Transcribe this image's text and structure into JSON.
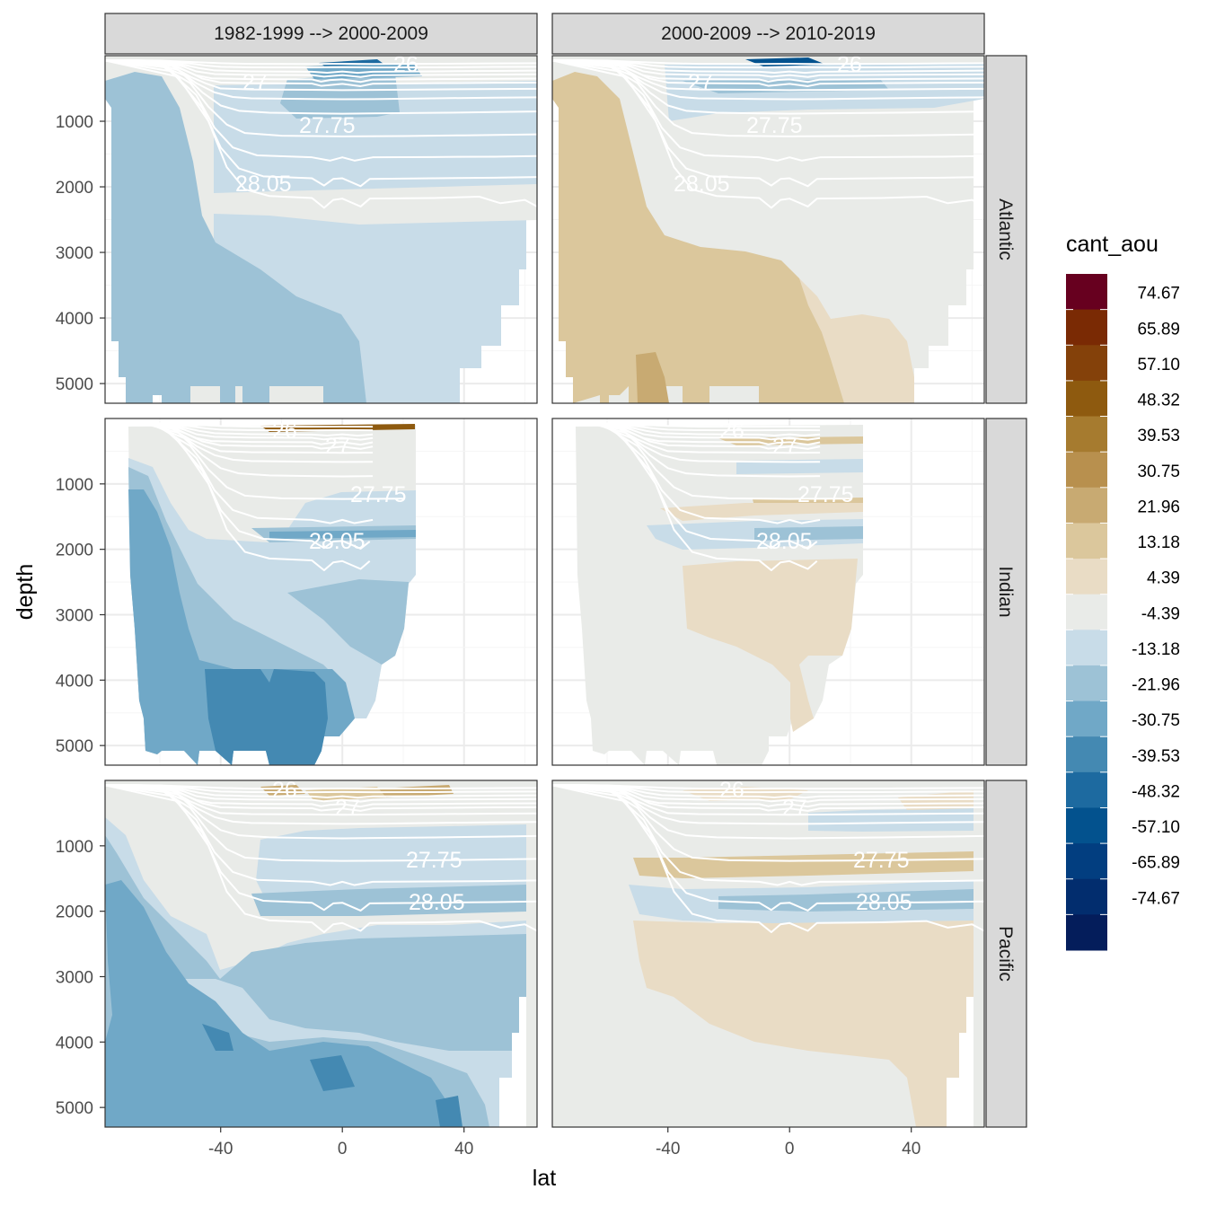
{
  "chart_data": {
    "type": "heatmap",
    "subtype": "faceted filled-contour depth-latitude sections",
    "xlabel": "lat",
    "ylabel": "depth",
    "x_ticks": [
      -40,
      0,
      40
    ],
    "y_ticks": [
      1000,
      2000,
      3000,
      4000,
      5000
    ],
    "xlim": [
      -78,
      64
    ],
    "ylim_reversed": [
      5300,
      0
    ],
    "column_facets": [
      "1982-1999 --> 2000-2009",
      "2000-2009 --> 2010-2019"
    ],
    "row_facets": [
      "Atlantic",
      "Indian",
      "Pacific"
    ],
    "isopycnal_labels": [
      "26",
      "27",
      "27.75",
      "28.05"
    ],
    "legend": {
      "title": "cant_aou",
      "labels": [
        "74.67",
        "65.89",
        "57.10",
        "48.32",
        "39.53",
        "30.75",
        "21.96",
        "13.18",
        "4.39",
        "-4.39",
        "-13.18",
        "-21.96",
        "-30.75",
        "-39.53",
        "-48.32",
        "-57.10",
        "-65.89",
        "-74.67"
      ],
      "colors": [
        "#67001f",
        "#7a2a04",
        "#84410a",
        "#8e5a0f",
        "#a67b2f",
        "#b8904e",
        "#c8aa72",
        "#dbc79c",
        "#e9dcc5",
        "#e9ebe8",
        "#c8dce8",
        "#9dc2d6",
        "#70a8c7",
        "#4489b2",
        "#1d6aa0",
        "#03528e",
        "#023e80",
        "#022d6e",
        "#041d5b"
      ]
    },
    "colors": {
      "panel_border": "#333333",
      "strip_fill": "#d9d9d9",
      "grid_major": "#ebebeb",
      "grid_minor": "#f5f5f5",
      "isopycnal_line": "#ffffff",
      "land": "#ffffff"
    }
  }
}
